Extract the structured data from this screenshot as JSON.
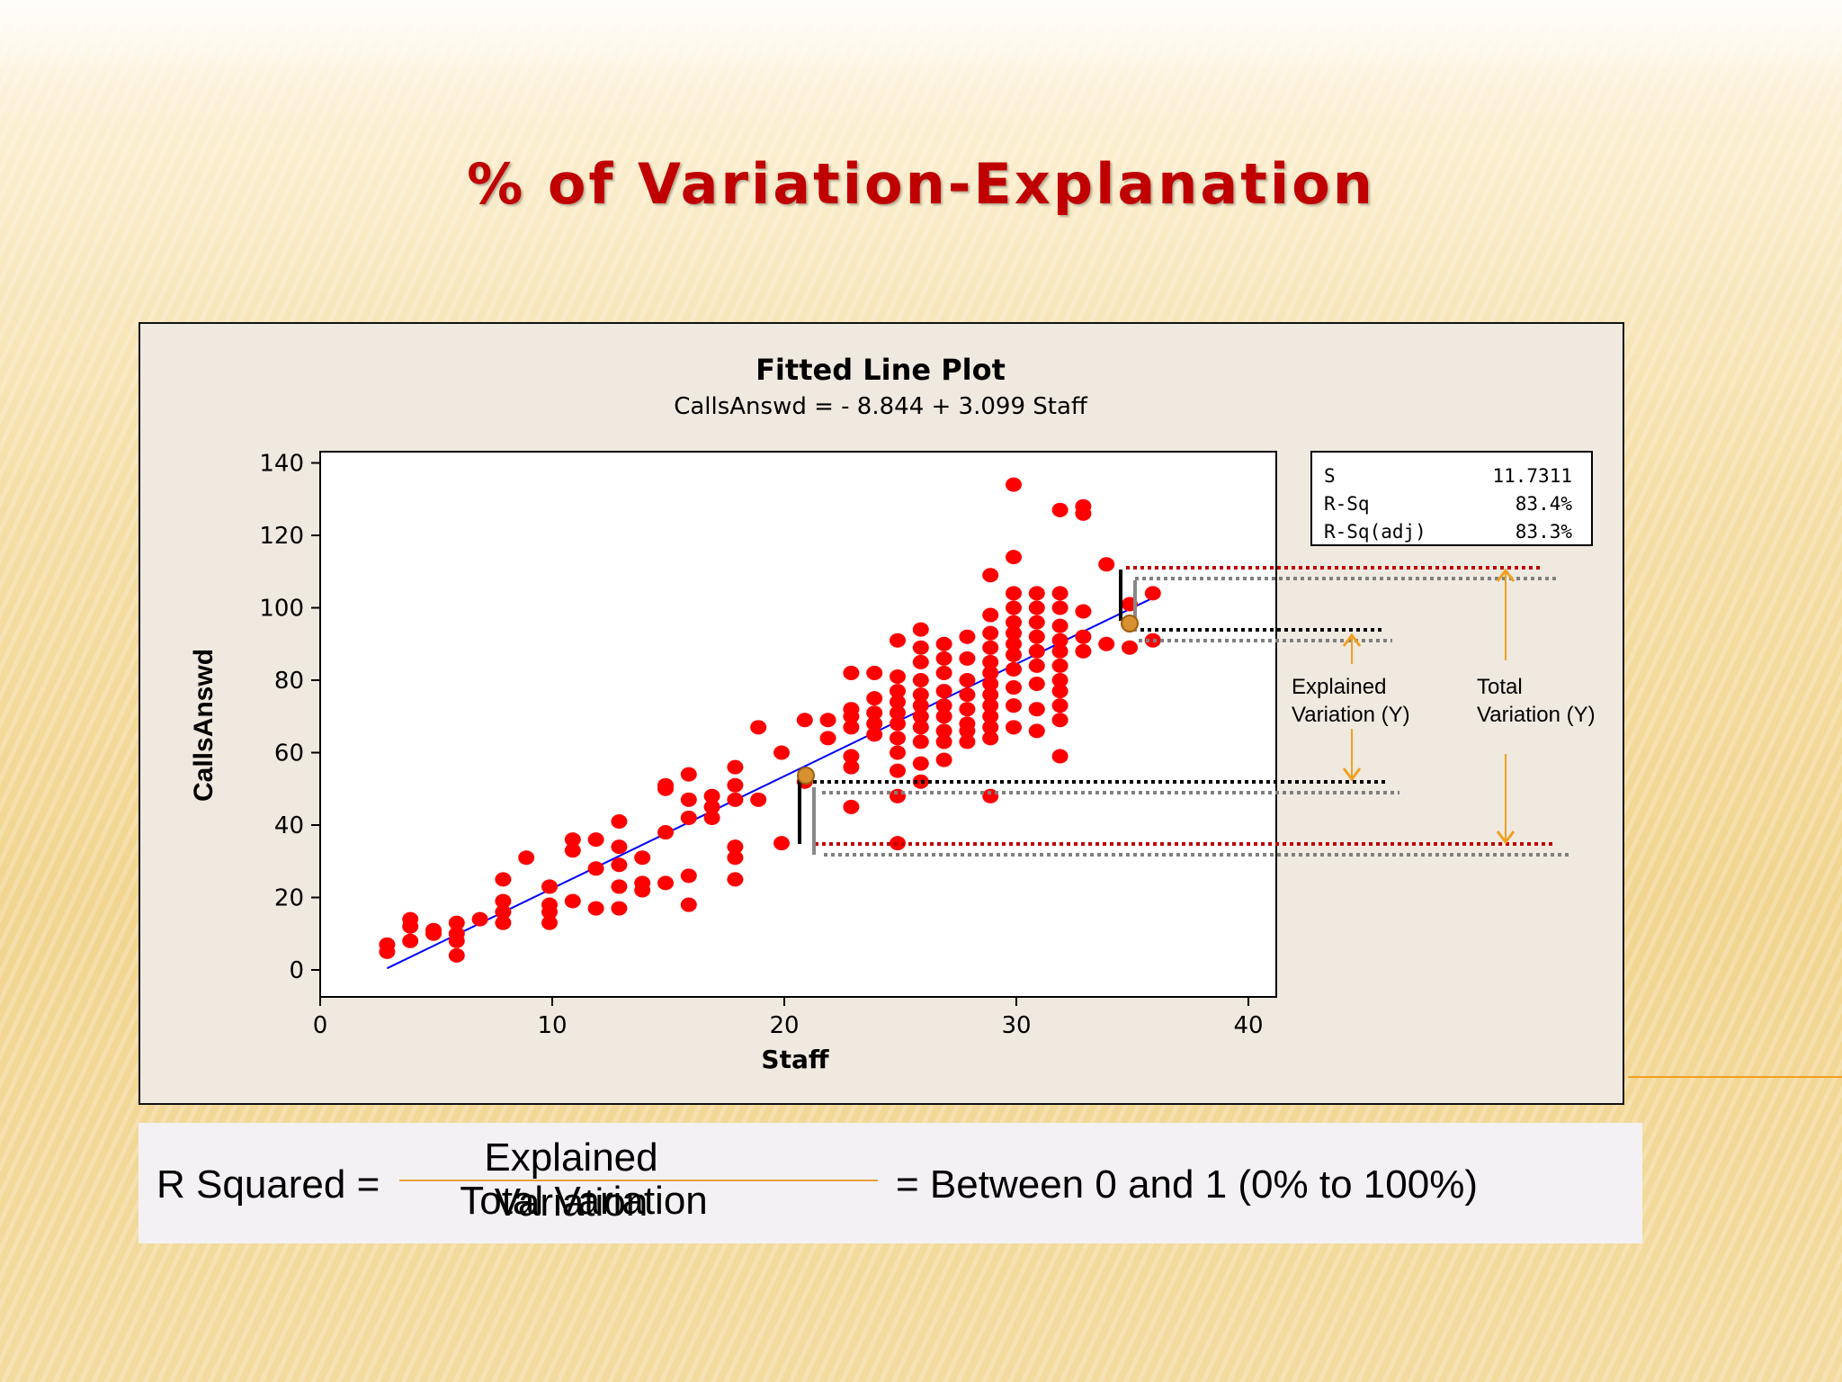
{
  "slide": {
    "title": "% of Variation-Explanation",
    "colors": {
      "title": "#c00000",
      "accent": "#f0a020",
      "points": "#ff0000",
      "fit_line": "#0000ff"
    }
  },
  "chart_data": {
    "type": "scatter",
    "title": "Fitted Line Plot",
    "subtitle": "CallsAnswd =  - 8.844 + 3.099 Staff",
    "xlabel": "Staff",
    "ylabel": "CallsAnswd",
    "xlim": [
      0,
      40
    ],
    "ylim": [
      0,
      140
    ],
    "x_ticks": [
      0,
      10,
      20,
      30,
      40
    ],
    "y_ticks": [
      0,
      20,
      40,
      60,
      80,
      100,
      120,
      140
    ],
    "grid": false,
    "fit": {
      "intercept": -8.844,
      "slope": 3.099,
      "x_range": [
        3,
        36
      ]
    },
    "stats": [
      {
        "label": "S",
        "value": "11.7311"
      },
      {
        "label": "R-Sq",
        "value": "83.4%"
      },
      {
        "label": "R-Sq(adj)",
        "value": "83.3%"
      }
    ],
    "points": [
      [
        3,
        5
      ],
      [
        3,
        7
      ],
      [
        4,
        8
      ],
      [
        4,
        12
      ],
      [
        4,
        14
      ],
      [
        5,
        10
      ],
      [
        5,
        11
      ],
      [
        6,
        4
      ],
      [
        6,
        8
      ],
      [
        6,
        10
      ],
      [
        6,
        13
      ],
      [
        7,
        14
      ],
      [
        8,
        13
      ],
      [
        8,
        16
      ],
      [
        8,
        19
      ],
      [
        8,
        25
      ],
      [
        9,
        31
      ],
      [
        10,
        13
      ],
      [
        10,
        16
      ],
      [
        10,
        18
      ],
      [
        10,
        23
      ],
      [
        11,
        19
      ],
      [
        11,
        33
      ],
      [
        11,
        36
      ],
      [
        12,
        17
      ],
      [
        12,
        28
      ],
      [
        12,
        36
      ],
      [
        13,
        17
      ],
      [
        13,
        23
      ],
      [
        13,
        29
      ],
      [
        13,
        34
      ],
      [
        13,
        41
      ],
      [
        14,
        22
      ],
      [
        14,
        24
      ],
      [
        14,
        31
      ],
      [
        15,
        24
      ],
      [
        15,
        38
      ],
      [
        15,
        50
      ],
      [
        15,
        51
      ],
      [
        16,
        18
      ],
      [
        16,
        26
      ],
      [
        16,
        42
      ],
      [
        16,
        47
      ],
      [
        16,
        54
      ],
      [
        17,
        42
      ],
      [
        17,
        45
      ],
      [
        17,
        48
      ],
      [
        18,
        25
      ],
      [
        18,
        31
      ],
      [
        18,
        34
      ],
      [
        18,
        47
      ],
      [
        18,
        51
      ],
      [
        18,
        56
      ],
      [
        19,
        47
      ],
      [
        19,
        67
      ],
      [
        20,
        35
      ],
      [
        20,
        60
      ],
      [
        21,
        52
      ],
      [
        21,
        69
      ],
      [
        22,
        64
      ],
      [
        22,
        69
      ],
      [
        23,
        45
      ],
      [
        23,
        56
      ],
      [
        23,
        59
      ],
      [
        23,
        67
      ],
      [
        23,
        70
      ],
      [
        23,
        72
      ],
      [
        23,
        82
      ],
      [
        24,
        65
      ],
      [
        24,
        68
      ],
      [
        24,
        71
      ],
      [
        24,
        75
      ],
      [
        24,
        82
      ],
      [
        25,
        35
      ],
      [
        25,
        48
      ],
      [
        25,
        55
      ],
      [
        25,
        60
      ],
      [
        25,
        64
      ],
      [
        25,
        68
      ],
      [
        25,
        71
      ],
      [
        25,
        74
      ],
      [
        25,
        77
      ],
      [
        25,
        81
      ],
      [
        25,
        91
      ],
      [
        26,
        52
      ],
      [
        26,
        57
      ],
      [
        26,
        63
      ],
      [
        26,
        67
      ],
      [
        26,
        70
      ],
      [
        26,
        73
      ],
      [
        26,
        76
      ],
      [
        26,
        80
      ],
      [
        26,
        85
      ],
      [
        26,
        89
      ],
      [
        26,
        94
      ],
      [
        27,
        58
      ],
      [
        27,
        63
      ],
      [
        27,
        66
      ],
      [
        27,
        70
      ],
      [
        27,
        73
      ],
      [
        27,
        77
      ],
      [
        27,
        82
      ],
      [
        27,
        86
      ],
      [
        27,
        90
      ],
      [
        28,
        63
      ],
      [
        28,
        66
      ],
      [
        28,
        68
      ],
      [
        28,
        72
      ],
      [
        28,
        76
      ],
      [
        28,
        80
      ],
      [
        28,
        86
      ],
      [
        28,
        92
      ],
      [
        29,
        48
      ],
      [
        29,
        64
      ],
      [
        29,
        67
      ],
      [
        29,
        70
      ],
      [
        29,
        73
      ],
      [
        29,
        76
      ],
      [
        29,
        79
      ],
      [
        29,
        82
      ],
      [
        29,
        85
      ],
      [
        29,
        89
      ],
      [
        29,
        93
      ],
      [
        29,
        98
      ],
      [
        29,
        109
      ],
      [
        30,
        67
      ],
      [
        30,
        73
      ],
      [
        30,
        78
      ],
      [
        30,
        83
      ],
      [
        30,
        87
      ],
      [
        30,
        90
      ],
      [
        30,
        93
      ],
      [
        30,
        96
      ],
      [
        30,
        100
      ],
      [
        30,
        104
      ],
      [
        30,
        114
      ],
      [
        30,
        134
      ],
      [
        31,
        66
      ],
      [
        31,
        72
      ],
      [
        31,
        79
      ],
      [
        31,
        84
      ],
      [
        31,
        88
      ],
      [
        31,
        92
      ],
      [
        31,
        96
      ],
      [
        31,
        100
      ],
      [
        31,
        104
      ],
      [
        32,
        59
      ],
      [
        32,
        69
      ],
      [
        32,
        73
      ],
      [
        32,
        77
      ],
      [
        32,
        80
      ],
      [
        32,
        84
      ],
      [
        32,
        88
      ],
      [
        32,
        91
      ],
      [
        32,
        95
      ],
      [
        32,
        100
      ],
      [
        32,
        104
      ],
      [
        32,
        127
      ],
      [
        33,
        88
      ],
      [
        33,
        92
      ],
      [
        33,
        99
      ],
      [
        33,
        126
      ],
      [
        33,
        128
      ],
      [
        34,
        90
      ],
      [
        34,
        112
      ],
      [
        35,
        89
      ],
      [
        35,
        101
      ],
      [
        36,
        91
      ],
      [
        36,
        104
      ]
    ],
    "annotations": {
      "explained_label": [
        "Explained",
        "Variation (Y)"
      ],
      "total_label": [
        "Total",
        "Variation (Y)"
      ],
      "highlight_points": [
        {
          "x": 20.3,
          "y": 54
        },
        {
          "x": 34.3,
          "y": 96
        }
      ]
    }
  },
  "formula": {
    "lhs": "R Squared =",
    "numerator": "Explained Variation",
    "denominator": "Total Variation",
    "rhs": "= Between 0 and 1 (0% to 100%)"
  }
}
